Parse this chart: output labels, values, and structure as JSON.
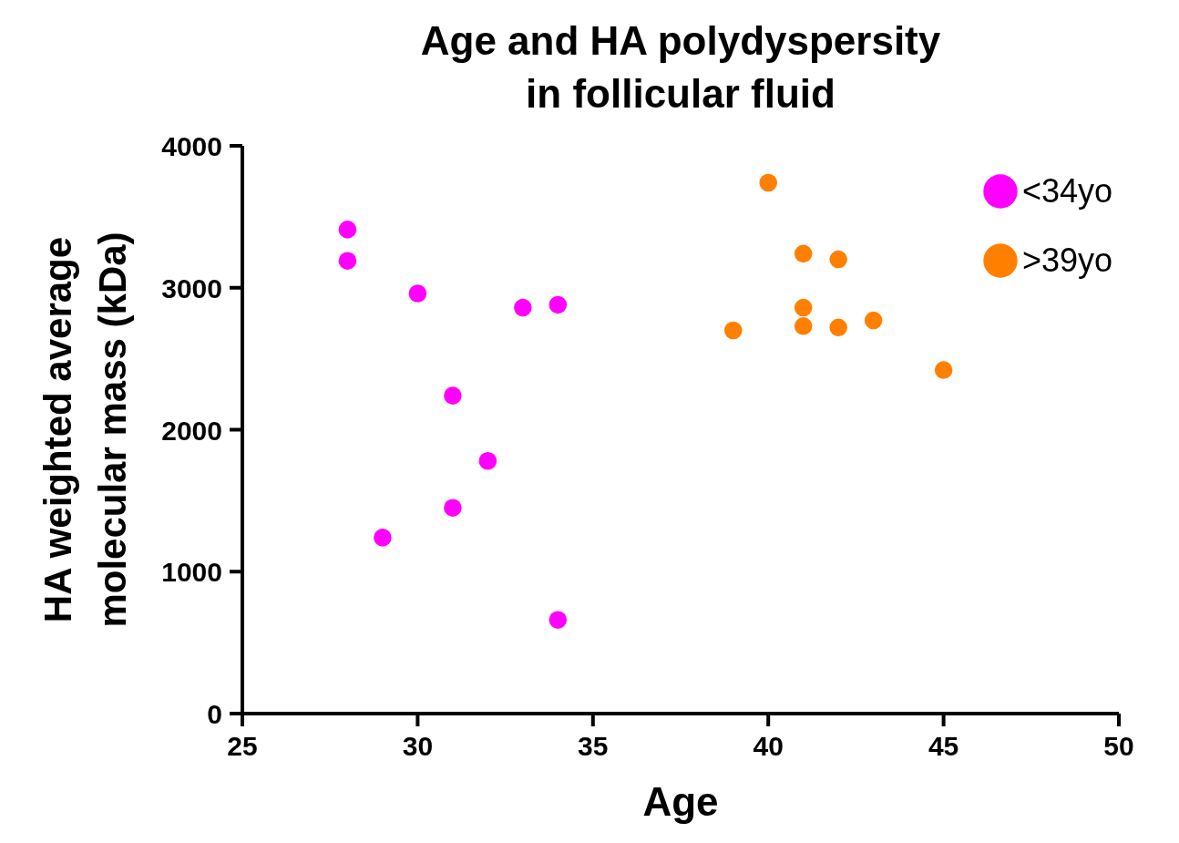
{
  "chart_data": {
    "type": "scatter",
    "title": "Age and HA polydyspersity\nin follicular fluid",
    "xlabel": "Age",
    "ylabel": "HA weighted average\nmolecular mass (kDa)",
    "xlim": [
      25,
      50
    ],
    "xticks": [
      25,
      30,
      35,
      40,
      45,
      50
    ],
    "ylim": [
      0,
      4000
    ],
    "yticks": [
      0,
      1000,
      2000,
      3000,
      4000
    ],
    "grid": false,
    "legend": "top right",
    "marker": "circle",
    "series": [
      {
        "name": "<34yo",
        "color": "#ff00ff",
        "x": [
          28,
          28,
          30,
          33,
          34,
          31,
          32,
          31,
          29,
          34
        ],
        "values": [
          3410,
          3190,
          2960,
          2860,
          2880,
          2240,
          1780,
          1450,
          1240,
          660
        ]
      },
      {
        "name": ">39yo",
        "color": "#ff8000",
        "x": [
          40,
          41,
          42,
          41,
          41,
          42,
          43,
          39,
          45
        ],
        "values": [
          3740,
          3240,
          3200,
          2860,
          2730,
          2720,
          2770,
          2700,
          2420
        ]
      }
    ]
  }
}
